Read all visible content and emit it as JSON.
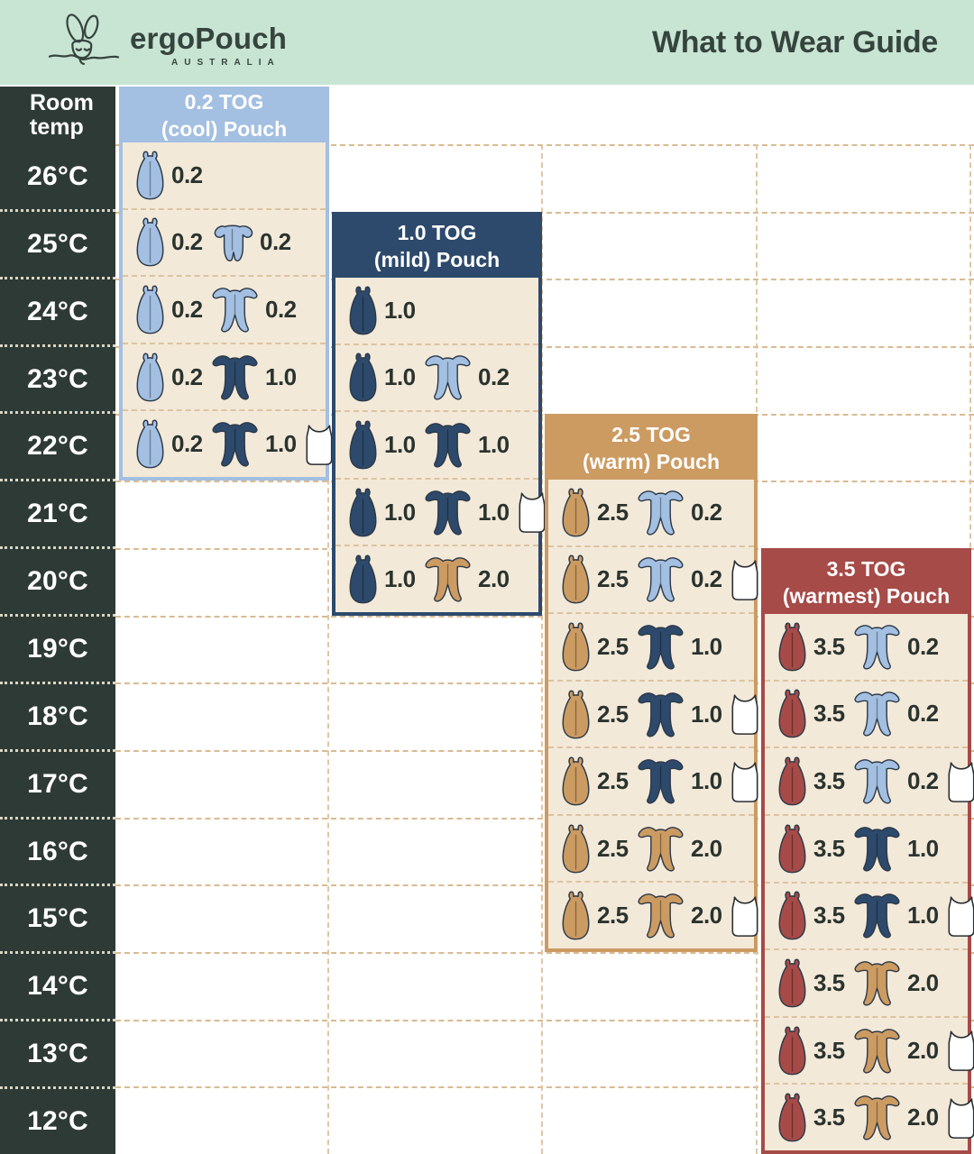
{
  "header": {
    "brand": "ergoPouch",
    "brand_sub": "AUSTRALIA",
    "title": "What to Wear Guide"
  },
  "temp_column": {
    "header_line1": "Room",
    "header_line2": "temp",
    "temps": [
      "26°C",
      "25°C",
      "24°C",
      "23°C",
      "22°C",
      "21°C",
      "20°C",
      "19°C",
      "18°C",
      "17°C",
      "16°C",
      "15°C",
      "14°C",
      "13°C",
      "12°C"
    ]
  },
  "colors": {
    "banner_bg": "#c8e5d3",
    "banner_text": "#36443e",
    "dark_col": "#2e3a36",
    "cream": "#f3e9d9",
    "lightblue": "#a3bfe1",
    "navy": "#2d4a6c",
    "tan": "#cc9b62",
    "red": "#a64b48",
    "white": "#ffffff",
    "outline": "#2c3947",
    "number_text": "#2a332e"
  },
  "panels": [
    {
      "id": "tog-0-2",
      "title_line1": "0.2 TOG",
      "title_line2": "(cool) Pouch",
      "color_key": "lightblue",
      "rows": [
        {
          "temp": "26°C",
          "items": [
            {
              "type": "pouch",
              "color_key": "lightblue",
              "label": "0.2"
            }
          ]
        },
        {
          "temp": "25°C",
          "items": [
            {
              "type": "pouch",
              "color_key": "lightblue",
              "label": "0.2"
            },
            {
              "type": "romper",
              "color_key": "lightblue",
              "label": "0.2"
            }
          ]
        },
        {
          "temp": "24°C",
          "items": [
            {
              "type": "pouch",
              "color_key": "lightblue",
              "label": "0.2"
            },
            {
              "type": "onesie",
              "color_key": "lightblue",
              "label": "0.2"
            }
          ]
        },
        {
          "temp": "23°C",
          "items": [
            {
              "type": "pouch",
              "color_key": "lightblue",
              "label": "0.2"
            },
            {
              "type": "onesie",
              "color_key": "navy",
              "label": "1.0"
            }
          ]
        },
        {
          "temp": "22°C",
          "items": [
            {
              "type": "pouch",
              "color_key": "lightblue",
              "label": "0.2"
            },
            {
              "type": "onesie",
              "color_key": "navy",
              "label": "1.0"
            },
            {
              "type": "singlet",
              "color_key": "white",
              "label": ""
            }
          ]
        }
      ]
    },
    {
      "id": "tog-1-0",
      "title_line1": "1.0 TOG",
      "title_line2": "(mild) Pouch",
      "color_key": "navy",
      "rows": [
        {
          "temp": "24°C",
          "items": [
            {
              "type": "pouch",
              "color_key": "navy",
              "label": "1.0"
            }
          ]
        },
        {
          "temp": "23°C",
          "items": [
            {
              "type": "pouch",
              "color_key": "navy",
              "label": "1.0"
            },
            {
              "type": "onesie",
              "color_key": "lightblue",
              "label": "0.2"
            }
          ]
        },
        {
          "temp": "22°C",
          "items": [
            {
              "type": "pouch",
              "color_key": "navy",
              "label": "1.0"
            },
            {
              "type": "onesie",
              "color_key": "navy",
              "label": "1.0"
            }
          ]
        },
        {
          "temp": "21°C",
          "items": [
            {
              "type": "pouch",
              "color_key": "navy",
              "label": "1.0"
            },
            {
              "type": "onesie",
              "color_key": "navy",
              "label": "1.0"
            },
            {
              "type": "singlet",
              "color_key": "white",
              "label": ""
            }
          ]
        },
        {
          "temp": "20°C",
          "items": [
            {
              "type": "pouch",
              "color_key": "navy",
              "label": "1.0"
            },
            {
              "type": "onesie",
              "color_key": "tan",
              "label": "2.0"
            }
          ]
        }
      ]
    },
    {
      "id": "tog-2-5",
      "title_line1": "2.5 TOG",
      "title_line2": "(warm) Pouch",
      "color_key": "tan",
      "rows": [
        {
          "temp": "21°C",
          "items": [
            {
              "type": "pouch",
              "color_key": "tan",
              "label": "2.5"
            },
            {
              "type": "onesie",
              "color_key": "lightblue",
              "label": "0.2"
            }
          ]
        },
        {
          "temp": "20°C",
          "items": [
            {
              "type": "pouch",
              "color_key": "tan",
              "label": "2.5"
            },
            {
              "type": "onesie",
              "color_key": "lightblue",
              "label": "0.2"
            },
            {
              "type": "singlet",
              "color_key": "white",
              "label": ""
            }
          ]
        },
        {
          "temp": "19°C",
          "items": [
            {
              "type": "pouch",
              "color_key": "tan",
              "label": "2.5"
            },
            {
              "type": "onesie",
              "color_key": "navy",
              "label": "1.0"
            }
          ]
        },
        {
          "temp": "18°C",
          "items": [
            {
              "type": "pouch",
              "color_key": "tan",
              "label": "2.5"
            },
            {
              "type": "onesie",
              "color_key": "navy",
              "label": "1.0"
            },
            {
              "type": "singlet",
              "color_key": "white",
              "label": ""
            }
          ]
        },
        {
          "temp": "17°C",
          "items": [
            {
              "type": "pouch",
              "color_key": "tan",
              "label": "2.5"
            },
            {
              "type": "onesie",
              "color_key": "navy",
              "label": "1.0"
            },
            {
              "type": "singlet",
              "color_key": "white",
              "label": ""
            }
          ]
        },
        {
          "temp": "16°C",
          "items": [
            {
              "type": "pouch",
              "color_key": "tan",
              "label": "2.5"
            },
            {
              "type": "onesie",
              "color_key": "tan",
              "label": "2.0"
            }
          ]
        },
        {
          "temp": "15°C",
          "items": [
            {
              "type": "pouch",
              "color_key": "tan",
              "label": "2.5"
            },
            {
              "type": "onesie",
              "color_key": "tan",
              "label": "2.0"
            },
            {
              "type": "singlet",
              "color_key": "white",
              "label": ""
            }
          ]
        }
      ]
    },
    {
      "id": "tog-3-5",
      "title_line1": "3.5 TOG",
      "title_line2": "(warmest) Pouch",
      "color_key": "red",
      "rows": [
        {
          "temp": "19°C",
          "items": [
            {
              "type": "pouch",
              "color_key": "red",
              "label": "3.5"
            },
            {
              "type": "onesie",
              "color_key": "lightblue",
              "label": "0.2"
            }
          ]
        },
        {
          "temp": "18°C",
          "items": [
            {
              "type": "pouch",
              "color_key": "red",
              "label": "3.5"
            },
            {
              "type": "onesie",
              "color_key": "lightblue",
              "label": "0.2"
            }
          ]
        },
        {
          "temp": "17°C",
          "items": [
            {
              "type": "pouch",
              "color_key": "red",
              "label": "3.5"
            },
            {
              "type": "onesie",
              "color_key": "lightblue",
              "label": "0.2"
            },
            {
              "type": "singlet",
              "color_key": "white",
              "label": ""
            }
          ]
        },
        {
          "temp": "16°C",
          "items": [
            {
              "type": "pouch",
              "color_key": "red",
              "label": "3.5"
            },
            {
              "type": "onesie",
              "color_key": "navy",
              "label": "1.0"
            }
          ]
        },
        {
          "temp": "15°C",
          "items": [
            {
              "type": "pouch",
              "color_key": "red",
              "label": "3.5"
            },
            {
              "type": "onesie",
              "color_key": "navy",
              "label": "1.0"
            },
            {
              "type": "singlet",
              "color_key": "white",
              "label": ""
            }
          ]
        },
        {
          "temp": "14°C",
          "items": [
            {
              "type": "pouch",
              "color_key": "red",
              "label": "3.5"
            },
            {
              "type": "onesie",
              "color_key": "tan",
              "label": "2.0"
            }
          ]
        },
        {
          "temp": "13°C",
          "items": [
            {
              "type": "pouch",
              "color_key": "red",
              "label": "3.5"
            },
            {
              "type": "onesie",
              "color_key": "tan",
              "label": "2.0"
            },
            {
              "type": "singlet",
              "color_key": "white",
              "label": ""
            }
          ]
        },
        {
          "temp": "12°C",
          "items": [
            {
              "type": "pouch",
              "color_key": "red",
              "label": "3.5"
            },
            {
              "type": "onesie",
              "color_key": "tan",
              "label": "2.0"
            },
            {
              "type": "singlet",
              "color_key": "white",
              "label": ""
            }
          ]
        }
      ]
    }
  ],
  "chart_data": {
    "type": "table",
    "title": "What to Wear Guide",
    "row_header": "Room temp",
    "temps_c": [
      26,
      25,
      24,
      23,
      22,
      21,
      20,
      19,
      18,
      17,
      16,
      15,
      14,
      13,
      12
    ],
    "columns": [
      "0.2 TOG (cool) Pouch",
      "1.0 TOG (mild) Pouch",
      "2.5 TOG (warm) Pouch",
      "3.5 TOG (warmest) Pouch"
    ],
    "cells": {
      "0.2 TOG (cool) Pouch": {
        "26": "pouch 0.2",
        "25": "pouch 0.2 + short-sleeve romper 0.2",
        "24": "pouch 0.2 + onesie 0.2",
        "23": "pouch 0.2 + onesie 1.0",
        "22": "pouch 0.2 + onesie 1.0 + singlet"
      },
      "1.0 TOG (mild) Pouch": {
        "24": "pouch 1.0",
        "23": "pouch 1.0 + onesie 0.2",
        "22": "pouch 1.0 + onesie 1.0",
        "21": "pouch 1.0 + onesie 1.0 + singlet",
        "20": "pouch 1.0 + onesie 2.0"
      },
      "2.5 TOG (warm) Pouch": {
        "21": "pouch 2.5 + onesie 0.2",
        "20": "pouch 2.5 + onesie 0.2 + singlet",
        "19": "pouch 2.5 + onesie 1.0",
        "18": "pouch 2.5 + onesie 1.0 + singlet",
        "17": "pouch 2.5 + onesie 1.0 + singlet",
        "16": "pouch 2.5 + onesie 2.0",
        "15": "pouch 2.5 + onesie 2.0 + singlet"
      },
      "3.5 TOG (warmest) Pouch": {
        "19": "pouch 3.5 + onesie 0.2",
        "18": "pouch 3.5 + onesie 0.2",
        "17": "pouch 3.5 + onesie 0.2 + singlet",
        "16": "pouch 3.5 + onesie 1.0",
        "15": "pouch 3.5 + onesie 1.0 + singlet",
        "14": "pouch 3.5 + onesie 2.0",
        "13": "pouch 3.5 + onesie 2.0 + singlet",
        "12": "pouch 3.5 + onesie 2.0 + singlet"
      }
    }
  }
}
